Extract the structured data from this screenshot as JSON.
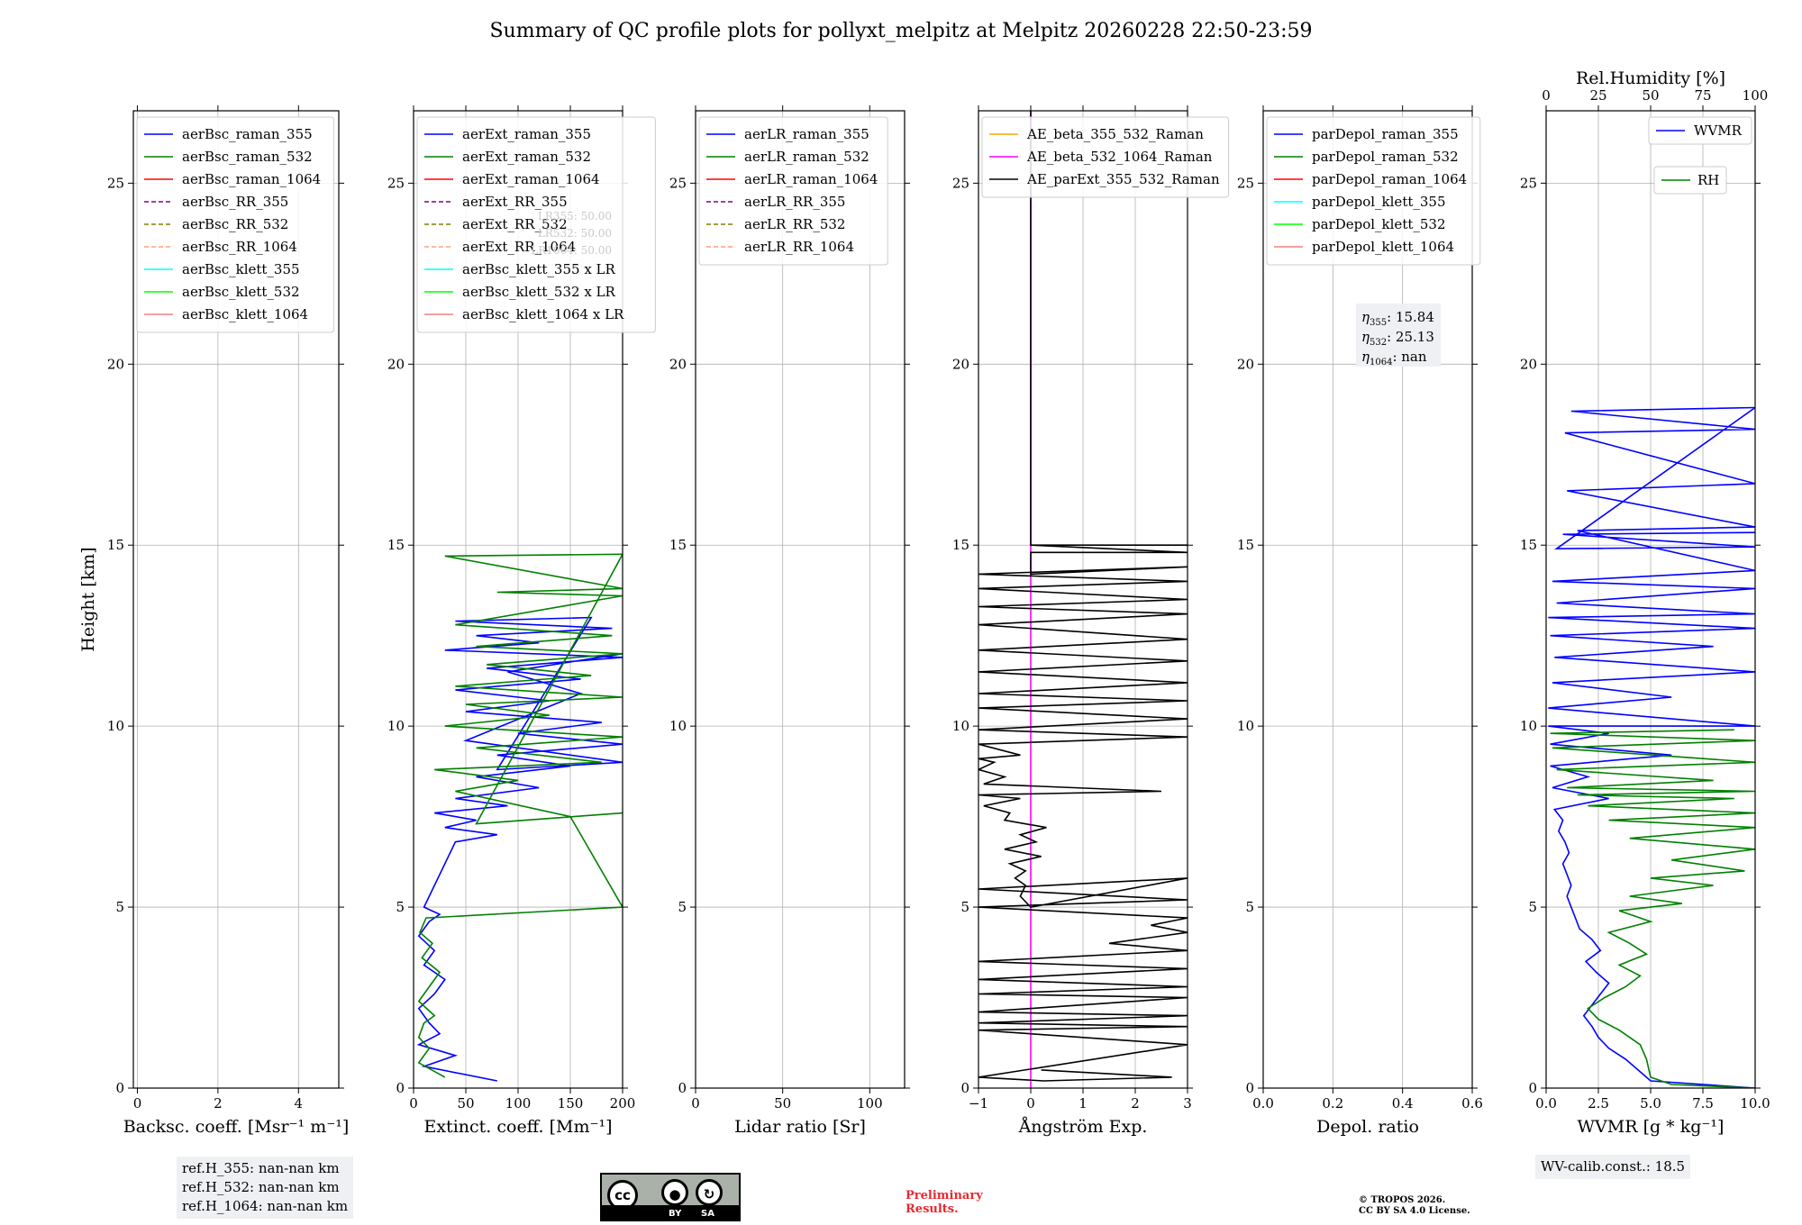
{
  "title": "Summary of QC profile plots for pollyxt_melpitz at Melpitz 20260228 22:50-23:59",
  "colors": {
    "blue": "#0000ff",
    "green": "#008000",
    "red": "#ff0000",
    "purple": "#800080",
    "olive": "#808000",
    "salmon": "#ffa07a",
    "cyan": "#00ffff",
    "lime": "#00ff00",
    "lightred": "#f08080",
    "orange": "#ffa500",
    "magenta": "#ff00ff",
    "black": "#000000",
    "grid": "#b0b0b0"
  },
  "chart_data": [
    {
      "type": "line",
      "id": "bsc",
      "xlabel": "Backsc. coeff. [Msr⁻¹ m⁻¹]",
      "ylabel": "Height [km]",
      "xlim": [
        -0.1,
        5
      ],
      "ylim": [
        0,
        27
      ],
      "xticks": [
        0,
        2,
        4
      ],
      "xtick_labels": [
        "0",
        "2",
        "4"
      ],
      "yticks": [
        0,
        5,
        10,
        15,
        20,
        25
      ],
      "ytick_labels": [
        "0",
        "5",
        "10",
        "15",
        "20",
        "25"
      ],
      "legend": [
        {
          "label": "aerBsc_raman_355",
          "color": "blue",
          "dash": false
        },
        {
          "label": "aerBsc_raman_532",
          "color": "green",
          "dash": false
        },
        {
          "label": "aerBsc_raman_1064",
          "color": "red",
          "dash": false
        },
        {
          "label": "aerBsc_RR_355",
          "color": "purple",
          "dash": true
        },
        {
          "label": "aerBsc_RR_532",
          "color": "olive",
          "dash": true
        },
        {
          "label": "aerBsc_RR_1064",
          "color": "salmon",
          "dash": true
        },
        {
          "label": "aerBsc_klett_355",
          "color": "cyan",
          "dash": false
        },
        {
          "label": "aerBsc_klett_532",
          "color": "lime",
          "dash": false
        },
        {
          "label": "aerBsc_klett_1064",
          "color": "lightred",
          "dash": false
        }
      ],
      "series": []
    },
    {
      "type": "line",
      "id": "ext",
      "xlabel": "Extinct. coeff. [Mm⁻¹]",
      "xlim": [
        0,
        200
      ],
      "ylim": [
        0,
        27
      ],
      "xticks": [
        0,
        50,
        100,
        150,
        200
      ],
      "xtick_labels": [
        "0",
        "50",
        "100",
        "150",
        "200"
      ],
      "yticks": [
        0,
        5,
        10,
        15,
        20,
        25
      ],
      "ytick_labels": [
        "0",
        "5",
        "10",
        "15",
        "20",
        "25"
      ],
      "legend": [
        {
          "label": "aerExt_raman_355",
          "color": "blue",
          "dash": false
        },
        {
          "label": "aerExt_raman_532",
          "color": "green",
          "dash": false
        },
        {
          "label": "aerExt_raman_1064",
          "color": "red",
          "dash": false
        },
        {
          "label": "aerExt_RR_355",
          "color": "purple",
          "dash": true
        },
        {
          "label": "aerExt_RR_532",
          "color": "olive",
          "dash": true
        },
        {
          "label": "aerExt_RR_1064",
          "color": "salmon",
          "dash": true
        },
        {
          "label": "aerBsc_klett_355 x LR",
          "color": "cyan",
          "dash": false
        },
        {
          "label": "aerBsc_klett_532 x LR",
          "color": "lime",
          "dash": false
        },
        {
          "label": "aerBsc_klett_1064 x LR",
          "color": "lightred",
          "dash": false
        }
      ],
      "annotation": [
        "LR355: 50.00",
        "LR532: 50.00",
        "LR1064: 50.00"
      ],
      "series": [
        {
          "name": "aerExt_raman_355",
          "color": "blue",
          "x": [
            80,
            10,
            40,
            5,
            25,
            15,
            5,
            20,
            30,
            10,
            20,
            5,
            15,
            25,
            10,
            40,
            80,
            30,
            60,
            20,
            90,
            40,
            120,
            60,
            150,
            80,
            200,
            100,
            180,
            50,
            130,
            40,
            160,
            70,
            200,
            30,
            120,
            60,
            190,
            40,
            170,
            80,
            200,
            50,
            160,
            90,
            200
          ],
          "y": [
            0.2,
            0.6,
            0.9,
            1.2,
            1.5,
            1.8,
            2.2,
            2.6,
            3.0,
            3.4,
            3.8,
            4.2,
            4.6,
            4.8,
            5.0,
            6.8,
            7.0,
            7.2,
            7.4,
            7.6,
            7.8,
            8.0,
            8.3,
            8.6,
            8.9,
            9.2,
            9.5,
            9.8,
            10.1,
            10.4,
            10.7,
            11.0,
            11.3,
            11.6,
            11.9,
            12.1,
            12.3,
            12.5,
            12.7,
            12.9,
            13.0,
            8.8,
            9.0,
            9.6,
            10.9,
            11.5,
            12.0
          ]
        },
        {
          "name": "aerExt_raman_532",
          "color": "green",
          "x": [
            30,
            5,
            15,
            5,
            10,
            20,
            5,
            15,
            25,
            8,
            18,
            6,
            12,
            200,
            150,
            40,
            100,
            20,
            180,
            60,
            200,
            30,
            130,
            50,
            200,
            40,
            170,
            70,
            200,
            60,
            190,
            40,
            200,
            80,
            200,
            30,
            200,
            60,
            200
          ],
          "y": [
            0.3,
            0.7,
            1.1,
            1.4,
            1.8,
            2.0,
            2.4,
            2.8,
            3.2,
            3.6,
            4.0,
            4.3,
            4.7,
            5.0,
            7.5,
            8.2,
            8.5,
            8.8,
            9.0,
            9.4,
            9.7,
            10.0,
            10.3,
            10.6,
            10.8,
            11.1,
            11.4,
            11.7,
            12.0,
            12.2,
            12.5,
            12.8,
            13.6,
            13.7,
            13.8,
            14.7,
            14.75,
            7.3,
            7.6
          ]
        }
      ]
    },
    {
      "type": "line",
      "id": "lr",
      "xlabel": "Lidar ratio [Sr]",
      "xlim": [
        0,
        120
      ],
      "ylim": [
        0,
        27
      ],
      "xticks": [
        0,
        50,
        100
      ],
      "xtick_labels": [
        "0",
        "50",
        "100"
      ],
      "yticks": [
        0,
        5,
        10,
        15,
        20,
        25
      ],
      "ytick_labels": [
        "0",
        "5",
        "10",
        "15",
        "20",
        "25"
      ],
      "legend": [
        {
          "label": "aerLR_raman_355",
          "color": "blue",
          "dash": false
        },
        {
          "label": "aerLR_raman_532",
          "color": "green",
          "dash": false
        },
        {
          "label": "aerLR_raman_1064",
          "color": "red",
          "dash": false
        },
        {
          "label": "aerLR_RR_355",
          "color": "purple",
          "dash": true
        },
        {
          "label": "aerLR_RR_532",
          "color": "olive",
          "dash": true
        },
        {
          "label": "aerLR_RR_1064",
          "color": "salmon",
          "dash": true
        }
      ],
      "series": []
    },
    {
      "type": "line",
      "id": "ae",
      "xlabel": "Ångström Exp.",
      "xlim": [
        -1,
        3
      ],
      "ylim": [
        0,
        27
      ],
      "xticks": [
        -1,
        0,
        1,
        2,
        3
      ],
      "xtick_labels": [
        "−1",
        "0",
        "1",
        "2",
        "3"
      ],
      "yticks": [
        0,
        5,
        10,
        15,
        20,
        25
      ],
      "ytick_labels": [
        "0",
        "5",
        "10",
        "15",
        "20",
        "25"
      ],
      "legend": [
        {
          "label": "AE_beta_355_532_Raman",
          "color": "orange",
          "dash": false
        },
        {
          "label": "AE_beta_532_1064_Raman",
          "color": "magenta",
          "dash": false
        },
        {
          "label": "AE_parExt_355_532_Raman",
          "color": "black",
          "dash": false
        }
      ],
      "series": [
        {
          "name": "AE_beta_532_1064_Raman",
          "color": "magenta",
          "x": [
            0,
            0
          ],
          "y": [
            0,
            27
          ]
        },
        {
          "name": "AE_parExt_355_532_Raman",
          "color": "black",
          "x": [
            0.2,
            2.7,
            0.25,
            -1,
            3,
            -1,
            3,
            -1,
            3,
            -1,
            3,
            -1,
            3,
            -1,
            3,
            -1,
            3,
            1.5,
            3,
            2.3,
            3,
            -1,
            3,
            -1,
            3,
            0,
            0,
            -0.2,
            -0.1,
            -0.3,
            -0.1,
            -0.4,
            0.2,
            -0.5,
            0.1,
            -0.2,
            0.3,
            -0.5,
            -0.4,
            -0.9,
            -0.2,
            -1,
            2.5,
            -0.9,
            -0.5,
            -1,
            -0.7,
            -1,
            -0.2,
            -1,
            3,
            -1,
            3,
            -1,
            3,
            -1,
            3,
            -1,
            3,
            -1,
            3,
            -1,
            3,
            -1,
            3,
            -1,
            3,
            -1,
            3,
            0,
            0,
            3,
            0,
            3,
            0,
            3,
            0,
            0
          ],
          "y": [
            0.5,
            0.3,
            0.2,
            0.3,
            1.2,
            1.6,
            1.7,
            1.8,
            2.0,
            2.1,
            2.5,
            2.6,
            2.8,
            3.0,
            3.3,
            3.5,
            3.8,
            4.0,
            4.3,
            4.5,
            4.7,
            5.0,
            5.2,
            5.5,
            5.8,
            5.0,
            5.0,
            5.3,
            5.6,
            5.8,
            6.0,
            6.2,
            6.4,
            6.6,
            6.8,
            7.0,
            7.2,
            7.4,
            7.6,
            7.8,
            8.0,
            8.1,
            8.2,
            8.4,
            8.6,
            8.8,
            9.0,
            9.1,
            9.2,
            9.5,
            9.7,
            9.9,
            10.2,
            10.5,
            10.7,
            10.9,
            11.2,
            11.5,
            11.8,
            12.1,
            12.4,
            12.8,
            13.1,
            13.3,
            13.5,
            13.8,
            14.0,
            14.2,
            14.4,
            14.2,
            14.8,
            14.8,
            15.0,
            15.0,
            15.0,
            15.0,
            15.0,
            27.0
          ]
        }
      ]
    },
    {
      "type": "line",
      "id": "depol",
      "xlabel": "Depol. ratio",
      "xlim": [
        0,
        0.6
      ],
      "ylim": [
        0,
        27
      ],
      "xticks": [
        0,
        0.2,
        0.4,
        0.6
      ],
      "xtick_labels": [
        "0.0",
        "0.2",
        "0.4",
        "0.6"
      ],
      "yticks": [
        0,
        5,
        10,
        15,
        20,
        25
      ],
      "ytick_labels": [
        "0",
        "5",
        "10",
        "15",
        "20",
        "25"
      ],
      "legend": [
        {
          "label": "parDepol_raman_355",
          "color": "blue",
          "dash": false
        },
        {
          "label": "parDepol_raman_532",
          "color": "green",
          "dash": false
        },
        {
          "label": "parDepol_raman_1064",
          "color": "red",
          "dash": false
        },
        {
          "label": "parDepol_klett_355",
          "color": "cyan",
          "dash": false
        },
        {
          "label": "parDepol_klett_532",
          "color": "lime",
          "dash": false
        },
        {
          "label": "parDepol_klett_1064",
          "color": "lightred",
          "dash": false
        }
      ],
      "eta": [
        {
          "sub": "355",
          "value": ": 15.84"
        },
        {
          "sub": "532",
          "value": ": 25.13"
        },
        {
          "sub": "1064",
          "value": ": nan"
        }
      ],
      "series": []
    },
    {
      "type": "line",
      "id": "wv",
      "xlabel": "WVMR [g * kg⁻¹]",
      "xlim": [
        0,
        10
      ],
      "ylim": [
        0,
        27
      ],
      "xticks": [
        0,
        2.5,
        5,
        7.5,
        10
      ],
      "xtick_labels": [
        "0.0",
        "2.5",
        "5.0",
        "7.5",
        "10.0"
      ],
      "yticks": [
        0,
        5,
        10,
        15,
        20,
        25
      ],
      "ytick_labels": [
        "0",
        "5",
        "10",
        "15",
        "20",
        "25"
      ],
      "top_axis": {
        "label": "Rel.Humidity [%]",
        "xlim": [
          0,
          100
        ],
        "xticks": [
          0,
          25,
          50,
          75,
          100
        ],
        "xtick_labels": [
          "0",
          "25",
          "50",
          "75",
          "100"
        ]
      },
      "legend_wvmr": {
        "label": "WVMR",
        "color": "blue"
      },
      "legend_rh": {
        "label": "RH",
        "color": "green"
      },
      "series": [
        {
          "name": "WVMR",
          "color": "blue",
          "x": [
            10,
            5,
            4.4,
            3.8,
            3.0,
            2.5,
            2.2,
            1.8,
            2.2,
            2.6,
            3.0,
            2.4,
            1.9,
            2.6,
            2.2,
            1.6,
            1.4,
            1.2,
            1.0,
            1.2,
            1.0,
            0.8,
            1.1,
            0.9,
            0.6,
            0.8,
            0.4,
            3.0,
            0.3,
            2.0,
            0.2,
            6.0,
            0.2,
            3.0,
            0.1,
            10,
            0.1,
            6,
            0.3,
            10,
            0.4,
            8,
            0.2,
            10,
            0.1,
            10,
            0.5,
            10,
            0.3,
            10,
            1.5,
            10,
            1.0,
            10,
            0.9,
            10,
            1.2,
            10,
            0.5,
            10,
            0.8,
            10
          ],
          "y": [
            0,
            0.2,
            0.5,
            0.8,
            1.1,
            1.4,
            1.7,
            2.0,
            2.3,
            2.6,
            2.9,
            3.2,
            3.5,
            3.8,
            4.1,
            4.4,
            4.7,
            5.0,
            5.3,
            5.6,
            5.9,
            6.2,
            6.5,
            6.8,
            7.1,
            7.4,
            7.7,
            8.0,
            8.3,
            8.6,
            8.9,
            9.2,
            9.5,
            9.8,
            10.0,
            10.0,
            10.5,
            10.8,
            11.2,
            11.5,
            11.9,
            12.2,
            12.5,
            12.7,
            13.0,
            13.1,
            13.4,
            13.8,
            14.0,
            14.3,
            15.4,
            15.5,
            16.5,
            16.7,
            18.1,
            18.2,
            18.7,
            18.8,
            14.9,
            14.95,
            15.3,
            15.35
          ]
        },
        {
          "name": "RH",
          "color": "green",
          "x": [
            10,
            6.0,
            5.0,
            4.8,
            4.5,
            3.5,
            2.5,
            2.0,
            2.8,
            3.8,
            4.5,
            3.5,
            4.8,
            4.0,
            3.0,
            5.0,
            3.5,
            6.5,
            4.0,
            8.0,
            5.0,
            9.5,
            6.0,
            10,
            4.0,
            10,
            3.0,
            10,
            2.0,
            9.0,
            1.5,
            10,
            1.0,
            8.0,
            0.5,
            10,
            0.3,
            10,
            0.2,
            9.0
          ],
          "y": [
            0,
            0.1,
            0.3,
            0.8,
            1.2,
            1.6,
            1.9,
            2.2,
            2.5,
            2.8,
            3.1,
            3.4,
            3.7,
            4.0,
            4.3,
            4.6,
            4.9,
            5.1,
            5.3,
            5.6,
            5.8,
            6.0,
            6.3,
            6.6,
            6.9,
            7.2,
            7.4,
            7.6,
            7.8,
            8.0,
            8.1,
            8.2,
            8.3,
            8.5,
            8.8,
            9.0,
            9.4,
            9.6,
            9.8,
            9.9
          ]
        }
      ]
    }
  ],
  "ref_heights": [
    "ref.H_355: nan-nan km",
    "ref.H_532: nan-nan km",
    "ref.H_1064: nan-nan km"
  ],
  "wv_calib": "WV-calib.const.: 18.5",
  "license_badge": {
    "cc": "cc",
    "by": "BY",
    "sa": "SA"
  },
  "preliminary": [
    "Preliminary",
    "Results."
  ],
  "copyright": [
    "© TROPOS 2026.",
    "CC BY SA 4.0 License."
  ]
}
